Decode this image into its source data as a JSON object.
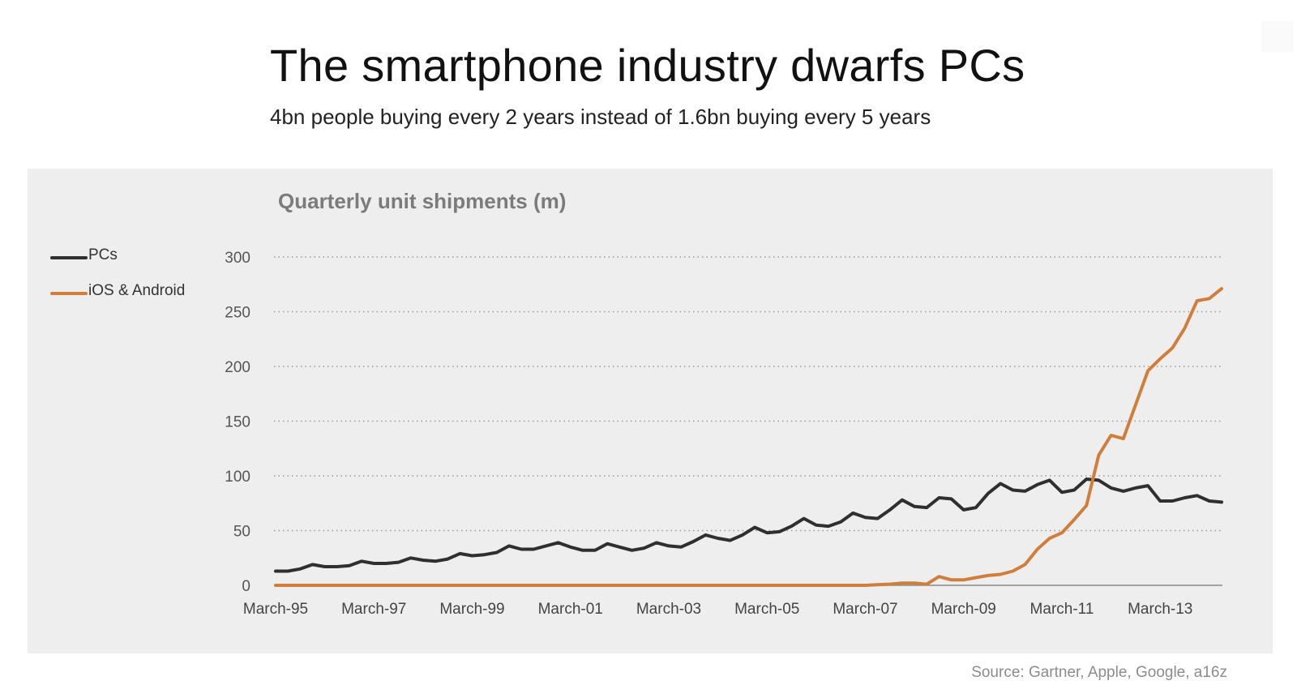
{
  "header": {
    "title": "The smartphone industry dwarfs PCs",
    "subtitle": "4bn people buying every 2 years instead of 1.6bn buying every 5 years"
  },
  "source": "Source: Gartner, Apple, Google, a16z",
  "colors": {
    "pcs": "#2f2f2f",
    "ios_android": "#cf7f3b",
    "panel": "#eeeeee",
    "grid": "#9a9a9a"
  },
  "chart_data": {
    "type": "line",
    "title": "Quarterly unit shipments (m)",
    "xlabel": "",
    "ylabel": "",
    "ylim": [
      0,
      300
    ],
    "yticks": [
      0,
      50,
      100,
      150,
      200,
      250,
      300
    ],
    "grid": true,
    "legend_position": "left",
    "x_tick_labels": [
      "March-95",
      "March-97",
      "March-99",
      "March-01",
      "March-03",
      "March-05",
      "March-07",
      "March-09",
      "March-11",
      "March-13"
    ],
    "x_tick_quarter_index": [
      0,
      8,
      16,
      24,
      32,
      40,
      48,
      56,
      64,
      72
    ],
    "x_start": "March-95",
    "x_step": "quarter",
    "series": [
      {
        "name": "PCs",
        "color": "#2f2f2f",
        "values": [
          13,
          13,
          15,
          19,
          17,
          17,
          18,
          22,
          20,
          20,
          21,
          25,
          23,
          22,
          24,
          29,
          27,
          28,
          30,
          36,
          33,
          33,
          36,
          39,
          35,
          32,
          32,
          38,
          35,
          32,
          34,
          39,
          36,
          35,
          40,
          46,
          43,
          41,
          46,
          53,
          48,
          49,
          54,
          61,
          55,
          54,
          58,
          66,
          62,
          61,
          69,
          78,
          72,
          71,
          80,
          79,
          69,
          71,
          84,
          93,
          87,
          86,
          92,
          96,
          85,
          87,
          97,
          96,
          89,
          86,
          89,
          91,
          77,
          77,
          80,
          82,
          77,
          76
        ]
      },
      {
        "name": "iOS & Android",
        "color": "#cf7f3b",
        "values": [
          0,
          0,
          0,
          0,
          0,
          0,
          0,
          0,
          0,
          0,
          0,
          0,
          0,
          0,
          0,
          0,
          0,
          0,
          0,
          0,
          0,
          0,
          0,
          0,
          0,
          0,
          0,
          0,
          0,
          0,
          0,
          0,
          0,
          0,
          0,
          0,
          0,
          0,
          0,
          0,
          0,
          0,
          0,
          0,
          0,
          0,
          0,
          0,
          0,
          0.5,
          1,
          2,
          2,
          1,
          8,
          5,
          5,
          7,
          9,
          10,
          13,
          19,
          33,
          43,
          48,
          60,
          73,
          119,
          137,
          134,
          165,
          196,
          207,
          217,
          235,
          260,
          262,
          271
        ]
      }
    ]
  }
}
